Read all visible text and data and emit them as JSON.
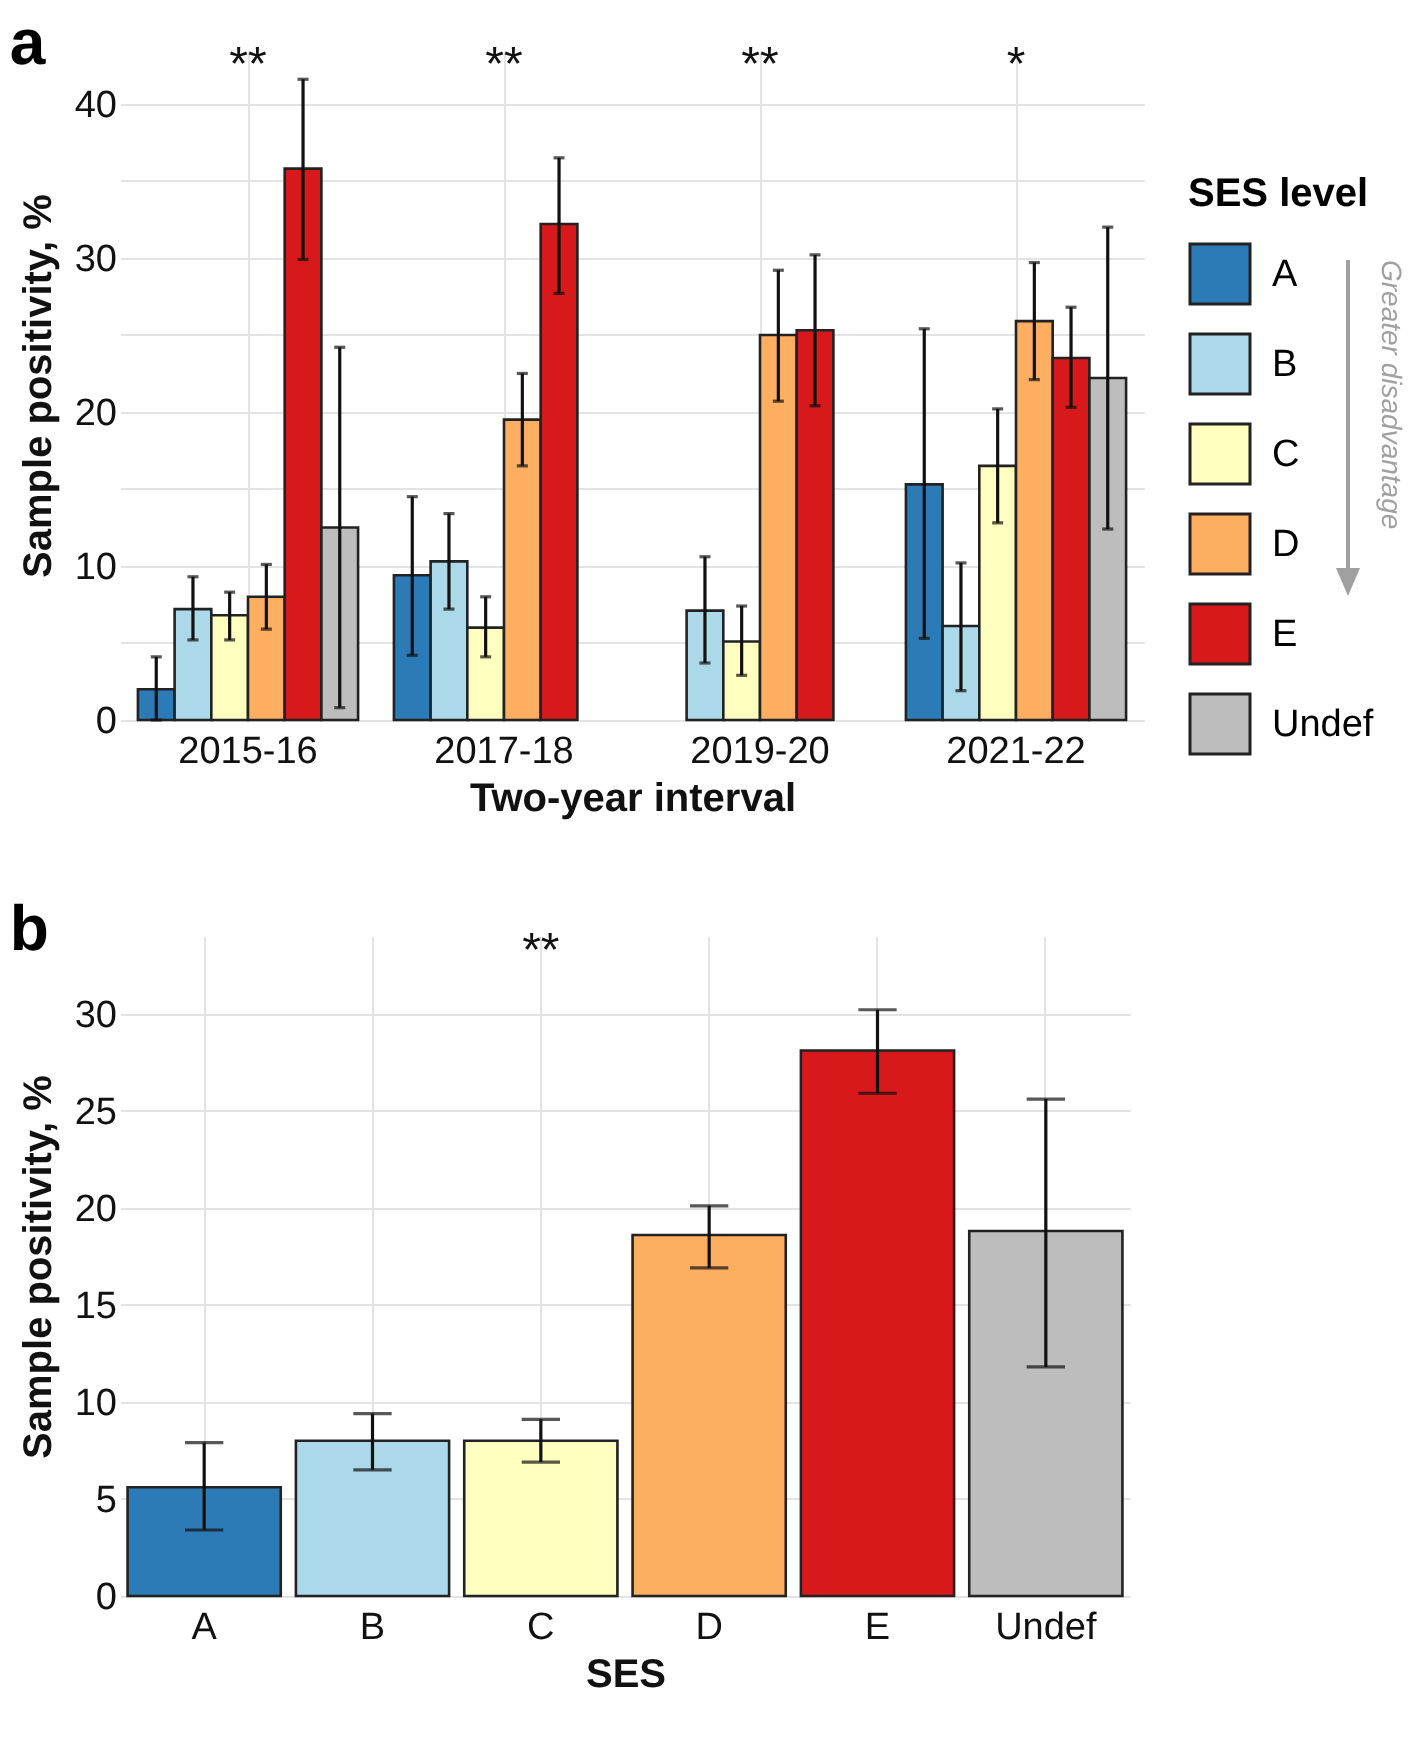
{
  "chart_data": [
    {
      "type": "bar",
      "title": "a",
      "xlabel": "Two-year interval",
      "ylabel": "Sample positivity, %",
      "legend_title": "SES level",
      "categories": [
        "2015-16",
        "2017-18",
        "2019-20",
        "2021-22"
      ],
      "series": [
        {
          "name": "A",
          "color": "#2c7bb6",
          "values": [
            2.0,
            9.4,
            0,
            15.3
          ],
          "errors": [
            [
              0,
              4.1
            ],
            [
              4.2,
              14.5
            ],
            null,
            [
              5.3,
              25.4
            ]
          ]
        },
        {
          "name": "B",
          "color": "#abd9e9",
          "values": [
            7.2,
            10.3,
            7.1,
            6.1
          ],
          "errors": [
            [
              5.2,
              9.3
            ],
            [
              7.2,
              13.4
            ],
            [
              3.7,
              10.6
            ],
            [
              1.9,
              10.2
            ]
          ]
        },
        {
          "name": "C",
          "color": "#ffffbf",
          "values": [
            6.8,
            6.0,
            5.1,
            16.5
          ],
          "errors": [
            [
              5.2,
              8.3
            ],
            [
              4.1,
              8.0
            ],
            [
              2.9,
              7.4
            ],
            [
              12.8,
              20.2
            ]
          ]
        },
        {
          "name": "D",
          "color": "#fdae61",
          "values": [
            8.0,
            19.5,
            25.0,
            25.9
          ],
          "errors": [
            [
              5.9,
              10.1
            ],
            [
              16.5,
              22.5
            ],
            [
              20.7,
              29.2
            ],
            [
              22.1,
              29.7
            ]
          ]
        },
        {
          "name": "E",
          "color": "#d7191c",
          "values": [
            35.8,
            32.2,
            25.3,
            23.5
          ],
          "errors": [
            [
              29.9,
              41.6
            ],
            [
              27.7,
              36.5
            ],
            [
              20.4,
              30.2
            ],
            [
              20.3,
              26.8
            ]
          ]
        },
        {
          "name": "Undef",
          "color": "#bdbdbd",
          "values": [
            12.5,
            null,
            null,
            22.2
          ],
          "errors": [
            [
              0.8,
              24.2
            ],
            null,
            null,
            [
              12.4,
              32.0
            ]
          ]
        }
      ],
      "ylim": [
        0,
        43.5
      ],
      "yticks": [
        0,
        {
          "value": 5,
          "label": null
        },
        10,
        {
          "value": 15,
          "label": null
        },
        20,
        {
          "value": 25,
          "label": null
        },
        30,
        {
          "value": 35,
          "label": null
        },
        40
      ],
      "grid": true,
      "legend": "right",
      "annotations": [
        "**",
        "**",
        "**",
        "*",
        "Greater disadvantage"
      ]
    },
    {
      "type": "bar",
      "title": "b",
      "xlabel": "SES",
      "ylabel": "Sample positivity, %",
      "categories": [
        "A",
        "B",
        "C",
        "D",
        "E",
        "Undef"
      ],
      "values": [
        5.6,
        8.0,
        8.0,
        18.6,
        28.1,
        18.8
      ],
      "colors": [
        "#2c7bb6",
        "#abd9e9",
        "#ffffbf",
        "#fdae61",
        "#d7191c",
        "#bdbdbd"
      ],
      "errors": [
        [
          3.4,
          7.9
        ],
        [
          6.5,
          9.4
        ],
        [
          6.9,
          9.1
        ],
        [
          16.9,
          20.1
        ],
        [
          25.9,
          30.2
        ],
        [
          11.8,
          25.6
        ]
      ],
      "ylim": [
        0,
        34
      ],
      "yticks": [
        0,
        5,
        10,
        15,
        20,
        25,
        30
      ],
      "grid": true,
      "annotations": [
        "**"
      ]
    }
  ]
}
